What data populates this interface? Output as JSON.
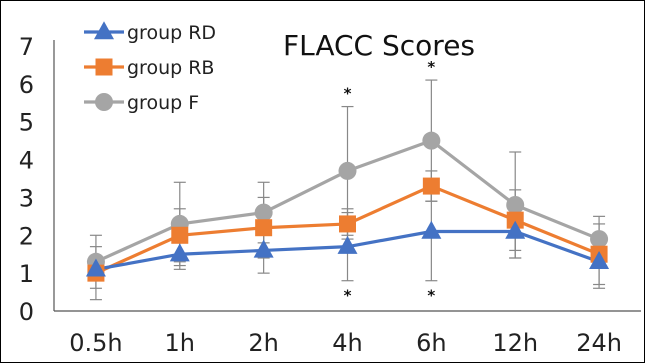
{
  "chart_data": {
    "type": "line",
    "title": "FLACC Scores",
    "xlabel": "",
    "ylabel": "",
    "categories": [
      "0.5h",
      "1h",
      "2h",
      "4h",
      "6h",
      "12h",
      "24h"
    ],
    "ylim": [
      0,
      7
    ],
    "yticks": [
      "0",
      "1",
      "2",
      "3",
      "4",
      "5",
      "6",
      "7"
    ],
    "grid": false,
    "legend_position": "top-left",
    "series": [
      {
        "name": "group RD",
        "color": "#4472C4",
        "marker": "triangle",
        "values": [
          1.1,
          1.5,
          1.6,
          1.7,
          2.1,
          2.1,
          1.3
        ],
        "errors": [
          0.3,
          0.4,
          0.6,
          0.9,
          1.3,
          0.7,
          0.7
        ]
      },
      {
        "name": "group RB",
        "color": "#ED7D31",
        "marker": "square",
        "values": [
          1.0,
          2.0,
          2.2,
          2.3,
          3.3,
          2.4,
          1.5
        ],
        "errors": [
          0.7,
          0.7,
          0.8,
          0.4,
          0.4,
          0.8,
          0.8
        ]
      },
      {
        "name": "group F",
        "color": "#A5A5A5",
        "marker": "circle",
        "values": [
          1.3,
          2.3,
          2.6,
          3.7,
          4.5,
          2.8,
          1.9
        ],
        "errors": [
          0.7,
          1.1,
          0.8,
          1.7,
          1.6,
          1.4,
          0.6
        ]
      }
    ],
    "annotations": [
      {
        "category": "4h",
        "position": "above",
        "text": "*"
      },
      {
        "category": "4h",
        "position": "below",
        "text": "*"
      },
      {
        "category": "6h",
        "position": "above",
        "text": "*"
      },
      {
        "category": "6h",
        "position": "below",
        "text": "*"
      }
    ]
  }
}
